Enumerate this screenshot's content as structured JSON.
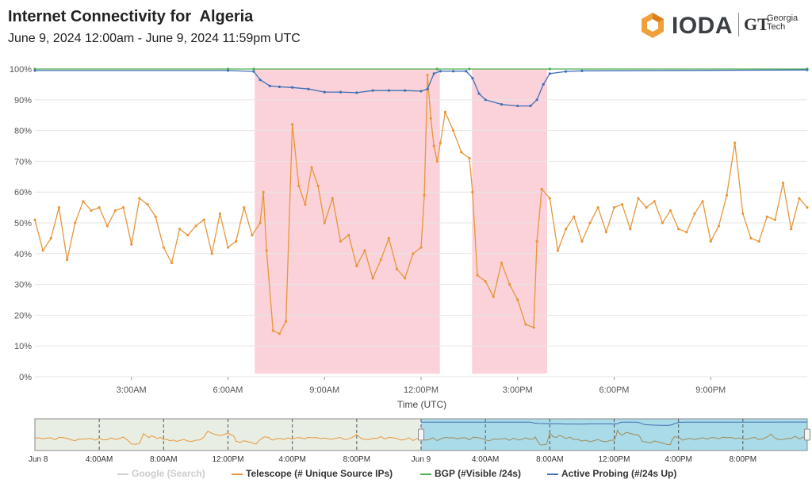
{
  "header": {
    "title": "Internet Connectivity for  Algeria",
    "subtitle": "June 9, 2024 12:00am - June 9, 2024 11:59pm UTC"
  },
  "logo": {
    "brand": "IODA",
    "partner_mark": "GT",
    "partner_line1": "Georgia",
    "partner_line2": "Tech"
  },
  "colors": {
    "telescope": "#e8963a",
    "bgp": "#4caf50",
    "active_probing": "#3f6fb5",
    "google": "#cccccc",
    "alert_band": "#fbd2d9",
    "overview_bg": "#e9eee4",
    "overview_sel": "#aadbe8"
  },
  "chart_data": {
    "type": "line",
    "xlabel": "Time (UTC)",
    "ylabel": "",
    "ylim": [
      0,
      100
    ],
    "xlim": [
      "00:00",
      "24:00"
    ],
    "x_ticks": [
      "3:00AM",
      "6:00AM",
      "9:00AM",
      "12:00PM",
      "3:00PM",
      "6:00PM",
      "9:00PM"
    ],
    "y_ticks": [
      "0%",
      "10%",
      "20%",
      "30%",
      "40%",
      "50%",
      "60%",
      "70%",
      "80%",
      "90%",
      "100%"
    ],
    "grid": true,
    "alert_bands": [
      {
        "start": "06:50",
        "end": "12:35"
      },
      {
        "start": "13:35",
        "end": "15:55"
      }
    ],
    "series": [
      {
        "name": "Telescope (# Unique Source IPs)",
        "x_unit": "hour",
        "x": [
          0.0,
          0.25,
          0.5,
          0.75,
          1.0,
          1.25,
          1.5,
          1.75,
          2.0,
          2.25,
          2.5,
          2.75,
          3.0,
          3.25,
          3.5,
          3.75,
          4.0,
          4.25,
          4.5,
          4.75,
          5.0,
          5.25,
          5.5,
          5.75,
          6.0,
          6.25,
          6.5,
          6.75,
          7.0,
          7.1,
          7.2,
          7.4,
          7.6,
          7.8,
          8.0,
          8.2,
          8.4,
          8.6,
          8.8,
          9.0,
          9.25,
          9.5,
          9.75,
          10.0,
          10.25,
          10.5,
          10.75,
          11.0,
          11.25,
          11.5,
          11.75,
          12.0,
          12.1,
          12.2,
          12.3,
          12.4,
          12.5,
          12.6,
          12.75,
          13.0,
          13.25,
          13.5,
          13.6,
          13.75,
          14.0,
          14.25,
          14.5,
          14.75,
          15.0,
          15.25,
          15.5,
          15.6,
          15.75,
          16.0,
          16.25,
          16.5,
          16.75,
          17.0,
          17.25,
          17.5,
          17.75,
          18.0,
          18.25,
          18.5,
          18.75,
          19.0,
          19.25,
          19.5,
          19.75,
          20.0,
          20.25,
          20.5,
          20.75,
          21.0,
          21.25,
          21.5,
          21.75,
          22.0,
          22.25,
          22.5,
          22.75,
          23.0,
          23.25,
          23.5,
          23.75,
          24.0
        ],
        "values": [
          51,
          41,
          45,
          55,
          38,
          50,
          57,
          54,
          55,
          49,
          54,
          55,
          43,
          58,
          56,
          52,
          42,
          37,
          48,
          46,
          49,
          51,
          40,
          53,
          42,
          44,
          55,
          46,
          50,
          60,
          41,
          15,
          14,
          18,
          82,
          62,
          56,
          68,
          62,
          50,
          58,
          44,
          46,
          36,
          41,
          32,
          38,
          45,
          35,
          32,
          40,
          42,
          59,
          98,
          84,
          75,
          70,
          76,
          86,
          80,
          73,
          71,
          60,
          33,
          31,
          26,
          37,
          30,
          25,
          17,
          16,
          44,
          61,
          58,
          41,
          48,
          52,
          44,
          50,
          55,
          47,
          55,
          56,
          48,
          58,
          55,
          57,
          50,
          54,
          48,
          47,
          53,
          57,
          44,
          49,
          59,
          76,
          53,
          45,
          44,
          52,
          51,
          63,
          48,
          58,
          55
        ],
        "marker": true
      },
      {
        "name": "BGP (#Visible /24s)",
        "x_unit": "hour",
        "x": [
          0,
          6,
          6.8,
          12.5,
          13.5,
          16,
          24
        ],
        "values": [
          100,
          100,
          100,
          100,
          100,
          100,
          100
        ]
      },
      {
        "name": "Active Probing (#/24s Up)",
        "x_unit": "hour",
        "x": [
          0,
          6.0,
          6.8,
          7.0,
          7.3,
          7.6,
          8.0,
          8.5,
          9.0,
          9.5,
          10.0,
          10.5,
          11.0,
          11.5,
          12.0,
          12.2,
          12.4,
          12.6,
          13.0,
          13.4,
          13.6,
          13.8,
          14.0,
          14.5,
          15.0,
          15.4,
          15.6,
          15.8,
          16.0,
          16.5,
          17,
          24
        ],
        "values": [
          99.5,
          99.5,
          99.2,
          96.5,
          94.5,
          94.2,
          94.0,
          93.5,
          92.5,
          92.5,
          92.3,
          93.0,
          93.0,
          93.0,
          92.8,
          93.5,
          98.5,
          99.3,
          99.3,
          99.3,
          97.0,
          92.0,
          90.0,
          88.5,
          88.0,
          88.0,
          90.0,
          95.0,
          98.5,
          99.2,
          99.4,
          99.7
        ]
      }
    ],
    "overview": {
      "x_ticks": [
        "Jun 8",
        "4:00AM",
        "8:00AM",
        "12:00PM",
        "4:00PM",
        "8:00PM",
        "Jun 9",
        "4:00AM",
        "8:00AM",
        "12:00PM",
        "4:00PM",
        "8:00PM"
      ]
    },
    "legend": [
      {
        "label": "Google (Search)",
        "color_key": "google",
        "disabled": true
      },
      {
        "label": "Telescope (# Unique Source IPs)",
        "color_key": "telescope",
        "disabled": false
      },
      {
        "label": "BGP (#Visible /24s)",
        "color_key": "bgp",
        "disabled": false
      },
      {
        "label": "Active Probing (#/24s Up)",
        "color_key": "active_probing",
        "disabled": false
      }
    ]
  }
}
